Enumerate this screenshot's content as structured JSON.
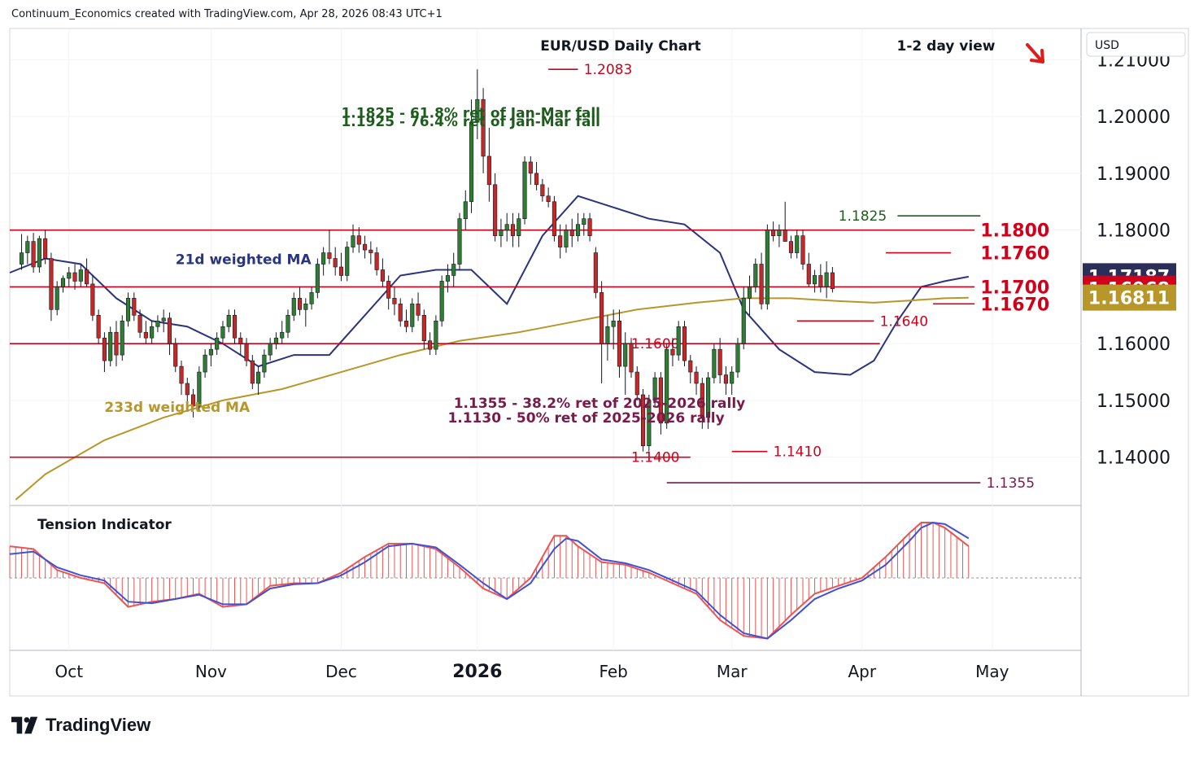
{
  "header": {
    "caption": "Continuum_Economics created with TradingView.com, Apr 28, 2026 08:43 UTC+1",
    "currency": "USD"
  },
  "branding": {
    "name": "TradingView"
  },
  "chart_data": {
    "type": "candlestick",
    "title": "EUR/USD Daily Chart",
    "subtitle": "1-2 day view",
    "view_direction": "down",
    "y_axis": {
      "ylim": [
        1.1315,
        1.2155
      ],
      "ticks": [
        "1.21000",
        "1.20000",
        "1.19000",
        "1.18000",
        "1.16000",
        "1.15000",
        "1.14000"
      ],
      "tick_values": [
        1.21,
        1.2,
        1.19,
        1.18,
        1.16,
        1.15,
        1.14
      ],
      "price_labels": [
        {
          "text": "1.17187",
          "value": 1.17187,
          "color": "#2a2e58"
        },
        {
          "text": "1.16968",
          "value": 1.16968,
          "color": "#d0021b"
        },
        {
          "text": "1.16811",
          "value": 1.16811,
          "color": "#b8972a"
        }
      ]
    },
    "x_axis": {
      "labels": [
        {
          "text": "Oct",
          "day": 4,
          "bold": false
        },
        {
          "text": "Nov",
          "day": 28,
          "bold": false
        },
        {
          "text": "Dec",
          "day": 50,
          "bold": false
        },
        {
          "text": "2026",
          "day": 73,
          "bold": true
        },
        {
          "text": "Feb",
          "day": 96,
          "bold": false
        },
        {
          "text": "Mar",
          "day": 116,
          "bold": false
        },
        {
          "text": "Apr",
          "day": 138,
          "bold": false
        },
        {
          "text": "May",
          "day": 160,
          "bold": false
        }
      ],
      "range_days": [
        -6,
        175
      ]
    },
    "candles": [
      [
        1.174,
        1.1793,
        1.173,
        1.176
      ],
      [
        1.176,
        1.179,
        1.174,
        1.178
      ],
      [
        1.178,
        1.1795,
        1.1725,
        1.1735
      ],
      [
        1.1735,
        1.179,
        1.1725,
        1.1785
      ],
      [
        1.1785,
        1.18,
        1.174,
        1.175
      ],
      [
        1.175,
        1.176,
        1.164,
        1.166
      ],
      [
        1.166,
        1.171,
        1.165,
        1.17
      ],
      [
        1.17,
        1.172,
        1.169,
        1.1715
      ],
      [
        1.1715,
        1.1735,
        1.17,
        1.1725
      ],
      [
        1.1725,
        1.174,
        1.1695,
        1.171
      ],
      [
        1.171,
        1.174,
        1.17,
        1.173
      ],
      [
        1.173,
        1.175,
        1.17,
        1.1705
      ],
      [
        1.1705,
        1.172,
        1.164,
        1.165
      ],
      [
        1.165,
        1.166,
        1.16,
        1.161
      ],
      [
        1.161,
        1.162,
        1.155,
        1.157
      ],
      [
        1.157,
        1.163,
        1.156,
        1.162
      ],
      [
        1.162,
        1.164,
        1.156,
        1.158
      ],
      [
        1.158,
        1.165,
        1.157,
        1.164
      ],
      [
        1.164,
        1.169,
        1.163,
        1.168
      ],
      [
        1.168,
        1.169,
        1.164,
        1.165
      ],
      [
        1.165,
        1.166,
        1.161,
        1.162
      ],
      [
        1.162,
        1.164,
        1.16,
        1.161
      ],
      [
        1.161,
        1.164,
        1.16,
        1.163
      ],
      [
        1.163,
        1.165,
        1.162,
        1.164
      ],
      [
        1.164,
        1.166,
        1.162,
        1.1645
      ],
      [
        1.1645,
        1.1655,
        1.158,
        1.16
      ],
      [
        1.16,
        1.161,
        1.155,
        1.156
      ],
      [
        1.156,
        1.157,
        1.151,
        1.153
      ],
      [
        1.153,
        1.154,
        1.149,
        1.151
      ],
      [
        1.151,
        1.152,
        1.147,
        1.149
      ],
      [
        1.149,
        1.156,
        1.148,
        1.155
      ],
      [
        1.155,
        1.159,
        1.154,
        1.158
      ],
      [
        1.158,
        1.16,
        1.156,
        1.159
      ],
      [
        1.159,
        1.162,
        1.158,
        1.161
      ],
      [
        1.161,
        1.164,
        1.16,
        1.163
      ],
      [
        1.163,
        1.166,
        1.162,
        1.165
      ],
      [
        1.165,
        1.166,
        1.16,
        1.161
      ],
      [
        1.161,
        1.162,
        1.158,
        1.16
      ],
      [
        1.16,
        1.161,
        1.156,
        1.157
      ],
      [
        1.157,
        1.158,
        1.152,
        1.153
      ],
      [
        1.153,
        1.156,
        1.151,
        1.155
      ],
      [
        1.155,
        1.159,
        1.154,
        1.158
      ],
      [
        1.158,
        1.161,
        1.157,
        1.16
      ],
      [
        1.16,
        1.162,
        1.159,
        1.161
      ],
      [
        1.161,
        1.164,
        1.16,
        1.162
      ],
      [
        1.162,
        1.166,
        1.161,
        1.165
      ],
      [
        1.165,
        1.169,
        1.164,
        1.168
      ],
      [
        1.168,
        1.17,
        1.165,
        1.166
      ],
      [
        1.166,
        1.168,
        1.163,
        1.167
      ],
      [
        1.167,
        1.17,
        1.166,
        1.169
      ],
      [
        1.169,
        1.175,
        1.168,
        1.174
      ],
      [
        1.174,
        1.177,
        1.172,
        1.176
      ],
      [
        1.176,
        1.18,
        1.174,
        1.175
      ],
      [
        1.175,
        1.177,
        1.172,
        1.1735
      ],
      [
        1.1735,
        1.176,
        1.171,
        1.172
      ],
      [
        1.172,
        1.178,
        1.171,
        1.177
      ],
      [
        1.177,
        1.181,
        1.176,
        1.179
      ],
      [
        1.179,
        1.1805,
        1.176,
        1.1775
      ],
      [
        1.1775,
        1.179,
        1.175,
        1.1765
      ],
      [
        1.1765,
        1.178,
        1.174,
        1.176
      ],
      [
        1.176,
        1.177,
        1.172,
        1.173
      ],
      [
        1.173,
        1.175,
        1.17,
        1.171
      ],
      [
        1.171,
        1.172,
        1.166,
        1.168
      ],
      [
        1.168,
        1.17,
        1.165,
        1.167
      ],
      [
        1.167,
        1.168,
        1.163,
        1.164
      ],
      [
        1.164,
        1.166,
        1.162,
        1.163
      ],
      [
        1.163,
        1.168,
        1.162,
        1.167
      ],
      [
        1.167,
        1.169,
        1.164,
        1.165
      ],
      [
        1.165,
        1.166,
        1.159,
        1.1605
      ],
      [
        1.1605,
        1.162,
        1.158,
        1.159
      ],
      [
        1.159,
        1.165,
        1.158,
        1.164
      ],
      [
        1.164,
        1.172,
        1.163,
        1.171
      ],
      [
        1.171,
        1.174,
        1.169,
        1.172
      ],
      [
        1.172,
        1.176,
        1.17,
        1.174
      ],
      [
        1.174,
        1.183,
        1.173,
        1.182
      ],
      [
        1.182,
        1.187,
        1.18,
        1.185
      ],
      [
        1.185,
        1.203,
        1.183,
        1.199
      ],
      [
        1.199,
        1.2083,
        1.196,
        1.203
      ],
      [
        1.203,
        1.205,
        1.19,
        1.193
      ],
      [
        1.193,
        1.198,
        1.185,
        1.188
      ],
      [
        1.188,
        1.19,
        1.178,
        1.179
      ],
      [
        1.179,
        1.182,
        1.177,
        1.18
      ],
      [
        1.18,
        1.183,
        1.178,
        1.181
      ],
      [
        1.181,
        1.183,
        1.177,
        1.179
      ],
      [
        1.179,
        1.183,
        1.177,
        1.182
      ],
      [
        1.182,
        1.193,
        1.181,
        1.192
      ],
      [
        1.192,
        1.193,
        1.188,
        1.19
      ],
      [
        1.19,
        1.192,
        1.187,
        1.188
      ],
      [
        1.188,
        1.189,
        1.185,
        1.186
      ],
      [
        1.186,
        1.1875,
        1.184,
        1.185
      ],
      [
        1.185,
        1.186,
        1.178,
        1.179
      ],
      [
        1.179,
        1.181,
        1.175,
        1.177
      ],
      [
        1.177,
        1.181,
        1.176,
        1.18
      ],
      [
        1.18,
        1.182,
        1.177,
        1.179
      ],
      [
        1.179,
        1.183,
        1.178,
        1.181
      ],
      [
        1.181,
        1.183,
        1.179,
        1.182
      ],
      [
        1.182,
        1.183,
        1.178,
        1.179
      ],
      [
        1.176,
        1.177,
        1.168,
        1.169
      ],
      [
        1.169,
        1.171,
        1.153,
        1.16
      ],
      [
        1.16,
        1.165,
        1.157,
        1.163
      ],
      [
        1.163,
        1.166,
        1.159,
        1.164
      ],
      [
        1.164,
        1.166,
        1.154,
        1.156
      ],
      [
        1.156,
        1.162,
        1.151,
        1.16
      ],
      [
        1.16,
        1.161,
        1.154,
        1.155
      ],
      [
        1.155,
        1.156,
        1.15,
        1.151
      ],
      [
        1.151,
        1.152,
        1.141,
        1.142
      ],
      [
        1.142,
        1.151,
        1.141,
        1.15
      ],
      [
        1.15,
        1.155,
        1.149,
        1.154
      ],
      [
        1.154,
        1.155,
        1.144,
        1.146
      ],
      [
        1.146,
        1.16,
        1.145,
        1.159
      ],
      [
        1.159,
        1.161,
        1.156,
        1.158
      ],
      [
        1.158,
        1.164,
        1.157,
        1.163
      ],
      [
        1.163,
        1.164,
        1.156,
        1.157
      ],
      [
        1.157,
        1.158,
        1.153,
        1.155
      ],
      [
        1.155,
        1.156,
        1.151,
        1.153
      ],
      [
        1.153,
        1.154,
        1.145,
        1.147
      ],
      [
        1.147,
        1.155,
        1.145,
        1.154
      ],
      [
        1.154,
        1.16,
        1.153,
        1.159
      ],
      [
        1.159,
        1.161,
        1.153,
        1.1545
      ],
      [
        1.1545,
        1.156,
        1.151,
        1.153
      ],
      [
        1.153,
        1.156,
        1.151,
        1.155
      ],
      [
        1.155,
        1.161,
        1.154,
        1.16
      ],
      [
        1.16,
        1.17,
        1.159,
        1.168
      ],
      [
        1.168,
        1.172,
        1.165,
        1.17
      ],
      [
        1.17,
        1.175,
        1.169,
        1.174
      ],
      [
        1.174,
        1.176,
        1.166,
        1.167
      ],
      [
        1.167,
        1.181,
        1.166,
        1.18
      ],
      [
        1.18,
        1.1815,
        1.178,
        1.179
      ],
      [
        1.179,
        1.181,
        1.177,
        1.18
      ],
      [
        1.18,
        1.185,
        1.178,
        1.178
      ],
      [
        1.178,
        1.179,
        1.175,
        1.176
      ],
      [
        1.176,
        1.18,
        1.175,
        1.179
      ],
      [
        1.179,
        1.18,
        1.173,
        1.174
      ],
      [
        1.174,
        1.176,
        1.17,
        1.1705
      ],
      [
        1.1705,
        1.173,
        1.169,
        1.172
      ],
      [
        1.172,
        1.174,
        1.169,
        1.17
      ],
      [
        1.17,
        1.1745,
        1.168,
        1.1725
      ],
      [
        1.1725,
        1.1735,
        1.169,
        1.16968
      ]
    ],
    "candle_day_step": 1,
    "candle_first_day": -4,
    "series": [
      {
        "name": "21d weighted MA",
        "color": "#2a3480",
        "days": [
          -6,
          0,
          6,
          12,
          18,
          24,
          30,
          36,
          42,
          48,
          54,
          60,
          66,
          72,
          78,
          84,
          90,
          96,
          102,
          108,
          114,
          118,
          124,
          130,
          136,
          140,
          144,
          148,
          152,
          156
        ],
        "values": [
          1.1725,
          1.175,
          1.174,
          1.168,
          1.164,
          1.163,
          1.16,
          1.156,
          1.158,
          1.158,
          1.165,
          1.172,
          1.173,
          1.173,
          1.167,
          1.179,
          1.186,
          1.184,
          1.182,
          1.181,
          1.176,
          1.166,
          1.159,
          1.155,
          1.1545,
          1.157,
          1.164,
          1.17,
          1.171,
          1.1718
        ]
      },
      {
        "name": "233d weighted MA",
        "color": "#b8972a",
        "days": [
          -5,
          0,
          10,
          20,
          30,
          40,
          50,
          60,
          70,
          80,
          90,
          100,
          110,
          118,
          126,
          134,
          140,
          146,
          152,
          156
        ],
        "values": [
          1.1325,
          1.137,
          1.143,
          1.147,
          1.15,
          1.152,
          1.155,
          1.158,
          1.1605,
          1.162,
          1.164,
          1.166,
          1.1672,
          1.168,
          1.168,
          1.1675,
          1.1672,
          1.1676,
          1.168,
          1.1681
        ]
      }
    ],
    "levels": [
      {
        "value": 1.18,
        "label": "1.1800",
        "color": "#d0021b",
        "from_day": -6,
        "to_day": 157,
        "label_day": 158,
        "style": "resistance"
      },
      {
        "value": 1.176,
        "label": "1.1760",
        "color": "#d0021b",
        "from_day": 142,
        "to_day": 153,
        "label_day": 158,
        "style": "resistance"
      },
      {
        "value": 1.17,
        "label": "1.1700",
        "color": "#d0021b",
        "from_day": -6,
        "to_day": 157,
        "label_day": 158,
        "style": "resistance"
      },
      {
        "value": 1.167,
        "label": "1.1670",
        "color": "#d0021b",
        "from_day": 150,
        "to_day": 157,
        "label_day": 158,
        "style": "support"
      },
      {
        "value": 1.164,
        "label": "1.1640",
        "color": "#d0021b",
        "from_day": 127,
        "to_day": 140,
        "label_day": 141,
        "style": "support"
      },
      {
        "value": 1.16,
        "label": "1.1600",
        "color": "#d0021b",
        "from_day": -6,
        "to_day": 141,
        "label_day": 99,
        "style": "support"
      },
      {
        "value": 1.14,
        "label": "1.1400",
        "color": "#d0021b",
        "from_day": -6,
        "to_day": 109,
        "label_day": 99,
        "style": "support"
      },
      {
        "value": 1.141,
        "label": "1.1410",
        "color": "#d0021b",
        "from_day": 116,
        "to_day": 122,
        "label_day": 123,
        "style": "support"
      },
      {
        "value": 1.2083,
        "label": "1.2083",
        "color": "#d0021b",
        "from_day": 85,
        "to_day": 90,
        "label_day": 91,
        "style": "resistance"
      },
      {
        "value": 1.1825,
        "label": "1.1825",
        "color": "#1e5c1e",
        "from_day": 144,
        "to_day": 158,
        "label_day": 134,
        "style": "fib"
      },
      {
        "value": 1.1355,
        "label": "1.1355",
        "color": "#7a1a4a",
        "from_day": 105,
        "to_day": 158,
        "label_day": 159,
        "style": "fib"
      }
    ],
    "annotations": [
      {
        "text": "1.1825 - 61.8% ret of Jan-Mar fall",
        "color": "#1e5c1e",
        "day": 50,
        "price": 1.1998
      },
      {
        "text": "1.1925 - 76.4% ret of Jan-Mar fall",
        "color": "#1e5c1e",
        "day": 50,
        "price": 1.1983
      },
      {
        "text": "21d weighted MA",
        "color": "#2a3480",
        "day": 22,
        "price": 1.174
      },
      {
        "text": "233d weighted MA",
        "color": "#b8972a",
        "day": 10,
        "price": 1.148
      },
      {
        "text": "1.1355 - 38.2% ret of 2025-2026 rally",
        "color": "#7a1a4a",
        "day": 69,
        "price": 1.1487
      },
      {
        "text": "1.1130 - 50% ret of 2025-2026 rally",
        "color": "#7a1a4a",
        "day": 68,
        "price": 1.1461
      }
    ],
    "indicator": {
      "name": "Tension Indicator",
      "days": [
        -6,
        -2,
        2,
        6,
        10,
        14,
        18,
        22,
        26,
        30,
        34,
        38,
        42,
        46,
        50,
        54,
        58,
        62,
        66,
        70,
        74,
        78,
        82,
        86,
        88,
        90,
        94,
        98,
        102,
        106,
        110,
        114,
        118,
        122,
        126,
        130,
        134,
        138,
        142,
        146,
        148,
        150,
        152,
        156
      ],
      "values": [
        0.6,
        0.55,
        0.15,
        0.0,
        -0.1,
        -0.55,
        -0.45,
        -0.4,
        -0.3,
        -0.55,
        -0.5,
        -0.15,
        -0.1,
        -0.1,
        0.1,
        0.4,
        0.65,
        0.65,
        0.55,
        0.2,
        -0.2,
        -0.4,
        0.0,
        0.8,
        0.8,
        0.6,
        0.3,
        0.25,
        0.1,
        -0.1,
        -0.3,
        -0.8,
        -1.1,
        -1.15,
        -0.7,
        -0.3,
        -0.15,
        0.0,
        0.4,
        0.85,
        1.05,
        1.05,
        0.95,
        0.6
      ],
      "signal_values": [
        0.45,
        0.5,
        0.2,
        0.05,
        -0.05,
        -0.45,
        -0.48,
        -0.4,
        -0.32,
        -0.5,
        -0.5,
        -0.2,
        -0.12,
        -0.1,
        0.05,
        0.3,
        0.6,
        0.65,
        0.58,
        0.25,
        -0.1,
        -0.4,
        -0.1,
        0.55,
        0.75,
        0.7,
        0.35,
        0.28,
        0.15,
        -0.05,
        -0.25,
        -0.7,
        -1.05,
        -1.15,
        -0.8,
        -0.4,
        -0.2,
        -0.05,
        0.25,
        0.7,
        0.95,
        1.05,
        1.02,
        0.75
      ],
      "ylim": [
        -1.25,
        1.25
      ]
    }
  }
}
